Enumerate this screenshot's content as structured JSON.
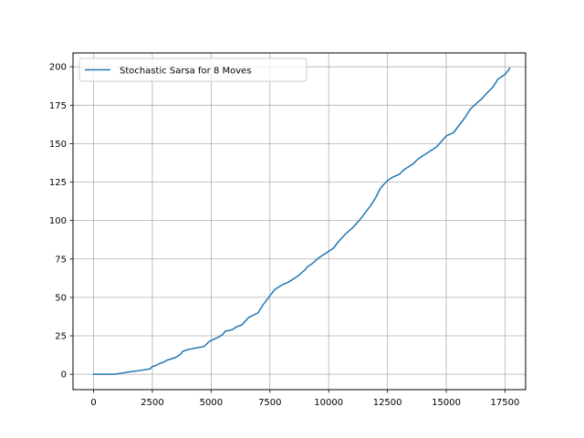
{
  "chart_data": {
    "type": "line",
    "title": "",
    "xlabel": "",
    "ylabel": "",
    "xlim": [
      -875,
      18375
    ],
    "ylim": [
      -10,
      209
    ],
    "xticks": [
      0,
      2500,
      5000,
      7500,
      10000,
      12500,
      15000,
      17500
    ],
    "yticks": [
      0,
      25,
      50,
      75,
      100,
      125,
      150,
      175,
      200
    ],
    "grid": true,
    "legend_position": "top-left",
    "series": [
      {
        "name": "Stochastic Sarsa for 8 Moves",
        "color": "#1f77b4",
        "x": [
          0,
          500,
          900,
          1100,
          1500,
          2000,
          2400,
          2500,
          2700,
          2800,
          3000,
          3100,
          3500,
          3700,
          3800,
          4000,
          4500,
          4700,
          4900,
          5000,
          5300,
          5500,
          5600,
          5900,
          6100,
          6300,
          6600,
          7000,
          7200,
          7400,
          7700,
          8000,
          8300,
          8500,
          8700,
          9000,
          9100,
          9300,
          9600,
          10000,
          10200,
          10400,
          10700,
          11000,
          11300,
          11500,
          11800,
          12000,
          12200,
          12500,
          12700,
          13000,
          13200,
          13600,
          13800,
          14000,
          14200,
          14600,
          15000,
          15300,
          15500,
          15800,
          16000,
          16200,
          16500,
          16800,
          17000,
          17200,
          17500,
          17700
        ],
        "y": [
          0,
          0,
          0,
          0.5,
          1.5,
          2.5,
          3.5,
          5,
          6,
          7,
          8,
          9,
          11,
          13,
          15,
          16,
          17.5,
          18,
          21,
          22,
          24,
          26,
          28,
          29,
          31,
          32,
          37,
          40,
          45,
          49,
          55,
          58,
          60,
          62,
          64,
          68,
          70,
          72,
          76,
          80,
          82,
          86,
          91,
          95,
          100,
          104,
          110,
          115,
          121,
          126,
          128,
          130,
          133,
          137,
          140,
          142,
          144,
          148,
          155,
          157,
          161,
          167,
          172,
          175,
          179,
          184,
          187,
          192,
          195,
          199
        ]
      }
    ]
  }
}
